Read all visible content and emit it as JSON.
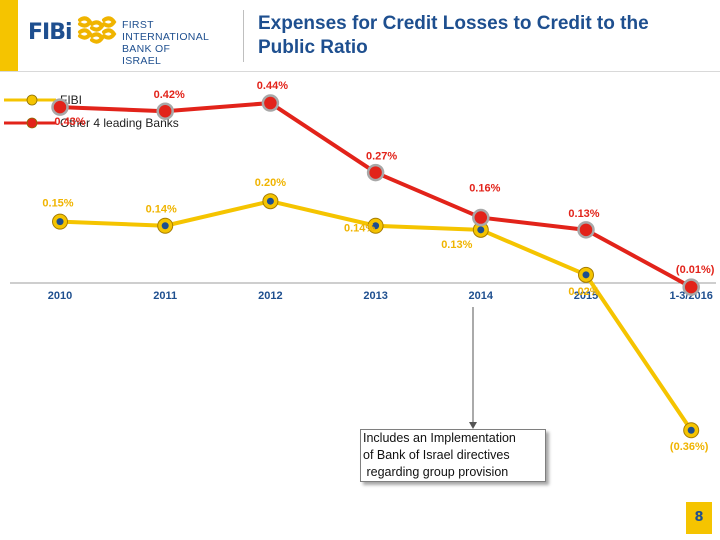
{
  "header": {
    "logo_word": "FIBi",
    "bank_name_line1": "FIRST INTERNATIONAL",
    "bank_name_line2": "BANK OF ISRAEL",
    "title": "Expenses for Credit Losses to Credit to the Public Ratio"
  },
  "chart_data": {
    "type": "line",
    "title": "Expenses for Credit Losses to Credit to the Public Ratio",
    "categories": [
      "2010",
      "2011",
      "2012",
      "2013",
      "2014",
      "2015",
      "1-3/2016"
    ],
    "series": [
      {
        "name": "FIBI",
        "values": [
          0.15,
          0.14,
          0.2,
          0.14,
          0.13,
          0.02,
          -0.36
        ],
        "labels": [
          "0.15%",
          "0.14%",
          "0.20%",
          "0.14%",
          "0.13%",
          "0.02%",
          "(0.36%)"
        ],
        "color": "#f5c400"
      },
      {
        "name": "Other  4 leading Banks",
        "values": [
          0.43,
          0.42,
          0.44,
          0.27,
          0.16,
          0.13,
          -0.01
        ],
        "labels": [
          "0.43%",
          "0.42%",
          "0.44%",
          "0.27%",
          "0.16%",
          "0.13%",
          "(0.01%)"
        ],
        "color": "#e2231a"
      }
    ],
    "legend_position": "top-left",
    "grid": false,
    "annotation": "Includes an Implementation\nof Bank of Israel directives\n regarding group provision"
  },
  "page_number": "8",
  "colors": {
    "brand_blue": "#1e4f8f",
    "accent_yellow": "#f5c400",
    "red": "#e2231a"
  }
}
